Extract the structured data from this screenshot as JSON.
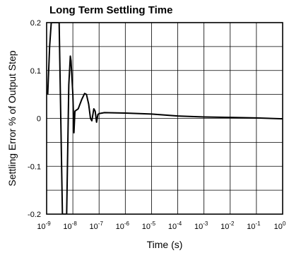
{
  "chart_data": {
    "type": "line",
    "title": "Long Term Settling Time",
    "xlabel": "Time (s)",
    "ylabel": "Settling Error % of Output Step",
    "xscale": "log",
    "xlim": [
      1e-09,
      1
    ],
    "ylim": [
      -0.2,
      0.2
    ],
    "grid": true,
    "x_ticks": [
      {
        "base": "10",
        "exp": "-9"
      },
      {
        "base": "10",
        "exp": "-8"
      },
      {
        "base": "10",
        "exp": "-7"
      },
      {
        "base": "10",
        "exp": "-6"
      },
      {
        "base": "10",
        "exp": "-5"
      },
      {
        "base": "10",
        "exp": "-4"
      },
      {
        "base": "10",
        "exp": "-3"
      },
      {
        "base": "10",
        "exp": "-2"
      },
      {
        "base": "10",
        "exp": "-1"
      },
      {
        "base": "10",
        "exp": "0"
      }
    ],
    "y_ticks": [
      "0.2",
      "0.1",
      "0",
      "-0.1",
      "-0.2"
    ],
    "y_tick_values": [
      0.2,
      0.1,
      0,
      -0.1,
      -0.2
    ],
    "y_minor_gridlines": [
      0.15,
      0.05,
      -0.05,
      -0.15
    ],
    "series": [
      {
        "points": [
          [
            1.1e-09,
            0.05
          ],
          [
            1.3e-09,
            0.15
          ],
          [
            1.5e-09,
            0.2
          ],
          [
            3e-09,
            0.2
          ],
          [
            4e-09,
            -0.2
          ],
          [
            5.8e-09,
            -0.2
          ],
          [
            7e-09,
            0.07
          ],
          [
            8e-09,
            0.13
          ],
          [
            8.5e-09,
            0.12
          ],
          [
            1e-08,
            0.05
          ],
          [
            1.1e-08,
            -0.03
          ],
          [
            1.2e-08,
            0.015
          ],
          [
            1.6e-08,
            0.02
          ],
          [
            2.2e-08,
            0.04
          ],
          [
            2.8e-08,
            0.052
          ],
          [
            3.3e-08,
            0.05
          ],
          [
            4e-08,
            0.03
          ],
          [
            4.7e-08,
            0.0
          ],
          [
            5.3e-08,
            -0.005
          ],
          [
            6.3e-08,
            0.02
          ],
          [
            7.1e-08,
            0.015
          ],
          [
            8e-08,
            -0.008
          ],
          [
            9e-08,
            0.008
          ],
          [
            1e-07,
            0.01
          ],
          [
            1.6e-07,
            0.012
          ],
          [
            1e-06,
            0.011
          ],
          [
            1e-05,
            0.009
          ],
          [
            0.0001,
            0.005
          ],
          [
            0.001,
            0.003
          ],
          [
            0.01,
            0.002
          ],
          [
            0.1,
            0.001
          ],
          [
            1.0,
            -0.001
          ]
        ]
      }
    ]
  }
}
